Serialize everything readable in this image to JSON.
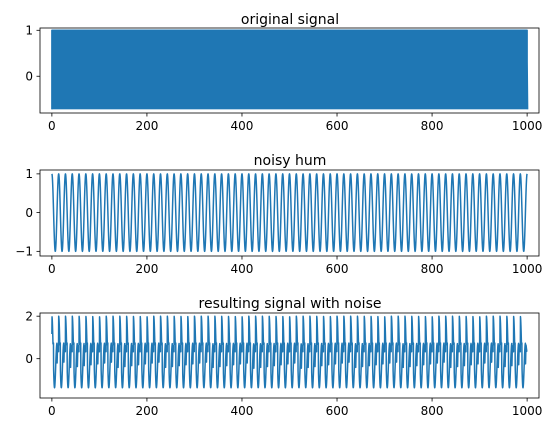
{
  "chart_data": [
    {
      "type": "line",
      "title": "original signal",
      "xlim": [
        -25,
        1025
      ],
      "ylim": [
        -0.8,
        1.05
      ],
      "xticks": [
        0,
        200,
        400,
        600,
        800,
        1000
      ],
      "xtick_labels": [
        "0",
        "200",
        "400",
        "600",
        "800",
        "1000"
      ],
      "yticks": [
        0,
        1
      ],
      "ytick_labels": [
        "0",
        "1"
      ],
      "color": "#1f77b4",
      "series": [
        {
          "x": [
            0,
            1000
          ],
          "y_min": -0.72,
          "y_max": 1.0,
          "end_x": [
            1000,
            1001
          ],
          "end_y": [
            0.32,
            -0.72
          ],
          "cycles": 999,
          "pattern": "dense"
        }
      ]
    },
    {
      "type": "line",
      "title": "noisy hum",
      "xlim": [
        -25,
        1025
      ],
      "ylim": [
        -1.12,
        1.1
      ],
      "xticks": [
        0,
        200,
        400,
        600,
        800,
        1000
      ],
      "xtick_labels": [
        "0",
        "200",
        "400",
        "600",
        "800",
        "1000"
      ],
      "yticks": [
        -1,
        0,
        1
      ],
      "ytick_labels": [
        "−1",
        "0",
        "1"
      ],
      "color": "#1f77b4",
      "series": [
        {
          "x": [
            0,
            1000
          ],
          "amplitude": 1.0,
          "cycles": 70,
          "pattern": "sine"
        }
      ]
    },
    {
      "type": "line",
      "title": "resulting signal with noise",
      "xlim": [
        -25,
        1025
      ],
      "ylim": [
        -1.85,
        2.15
      ],
      "xticks": [
        0,
        200,
        400,
        600,
        800,
        1000
      ],
      "xtick_labels": [
        "0",
        "200",
        "400",
        "600",
        "800",
        "1000"
      ],
      "yticks": [
        0,
        2
      ],
      "ytick_labels": [
        "0",
        "2"
      ],
      "color": "#1f77b4",
      "series": [
        {
          "x": [
            0,
            1000
          ],
          "y_min": -1.72,
          "y_max": 2.0,
          "cycles": 70,
          "pattern": "sum"
        }
      ]
    }
  ]
}
